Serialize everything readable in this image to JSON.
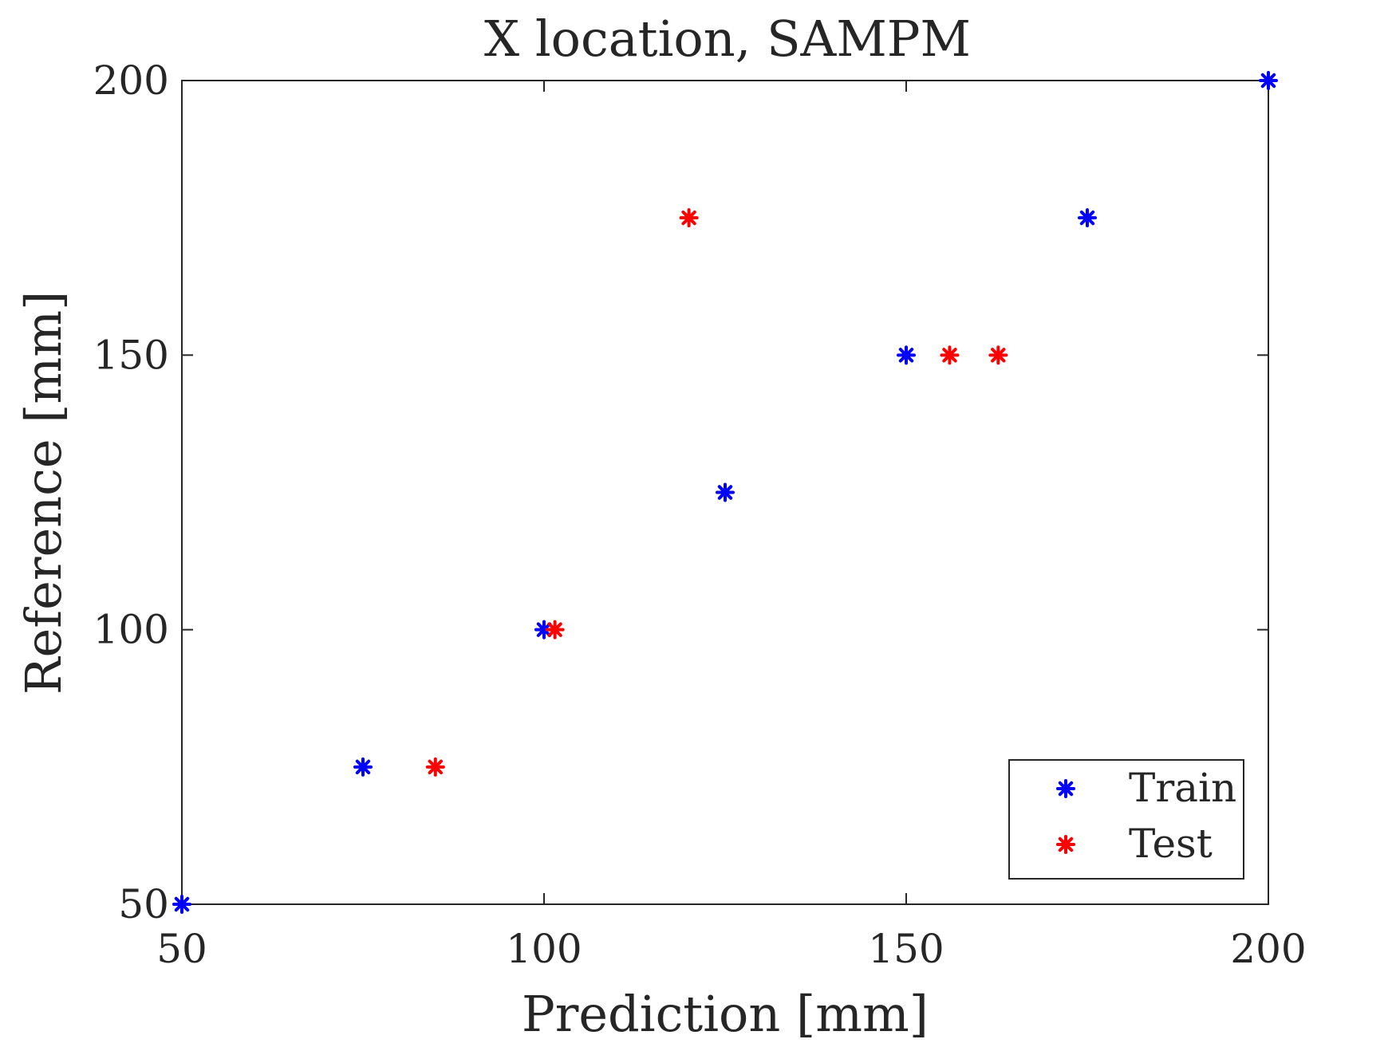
{
  "chart_data": {
    "type": "scatter",
    "title": "X location, SAMPM",
    "xlabel": "Prediction [mm]",
    "ylabel": "Reference [mm]",
    "xlim": [
      50,
      200
    ],
    "ylim": [
      50,
      200
    ],
    "xticks": [
      "50",
      "100",
      "150",
      "200"
    ],
    "yticks": [
      "50",
      "100",
      "150",
      "200"
    ],
    "grid": false,
    "legend_position": "bottom-right",
    "series": [
      {
        "name": "Train",
        "color": "#0000ff",
        "marker": "asterisk",
        "points": [
          {
            "x": 50,
            "y": 50
          },
          {
            "x": 75,
            "y": 75
          },
          {
            "x": 100,
            "y": 100
          },
          {
            "x": 125,
            "y": 125
          },
          {
            "x": 150,
            "y": 150
          },
          {
            "x": 175,
            "y": 175
          },
          {
            "x": 200,
            "y": 200
          }
        ]
      },
      {
        "name": "Test",
        "color": "#ff0000",
        "marker": "asterisk",
        "points": [
          {
            "x": 85,
            "y": 75
          },
          {
            "x": 101.5,
            "y": 100
          },
          {
            "x": 120,
            "y": 175
          },
          {
            "x": 156,
            "y": 150
          },
          {
            "x": 162.7,
            "y": 150
          }
        ]
      }
    ]
  }
}
